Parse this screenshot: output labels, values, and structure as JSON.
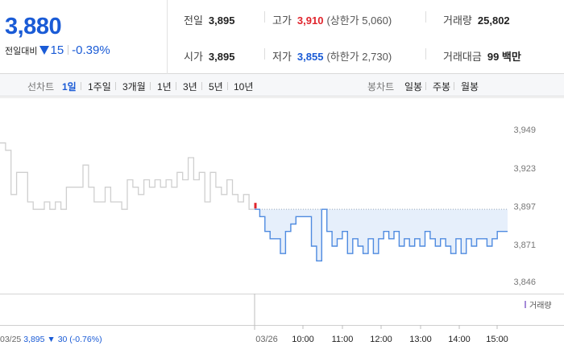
{
  "summary": {
    "price": "3,880",
    "change_label": "전일대비",
    "change_value": "15",
    "change_pct": "-0.39%",
    "prev_close_label": "전일",
    "prev_close": "3,895",
    "open_label": "시가",
    "open": "3,895",
    "high_label": "고가",
    "high": "3,910",
    "upper_limit": "(상한가 5,060)",
    "low_label": "저가",
    "low": "3,855",
    "lower_limit": "(하한가 2,730)",
    "volume_label": "거래량",
    "volume": "25,802",
    "value_label": "거래대금",
    "value": "99 백만"
  },
  "period_bar": {
    "line_label": "선차트",
    "line_options": [
      "1일",
      "1주일",
      "3개월",
      "1년",
      "3년",
      "5년",
      "10년"
    ],
    "line_selected": "1일",
    "candle_label": "봉차트",
    "candle_options": [
      "일봉",
      "주봉",
      "월봉"
    ]
  },
  "colors": {
    "down": "#1a5bd6",
    "up": "#e0242c",
    "prev_day_line": "#cfcfcf",
    "today_line": "#4f8be0",
    "fill": "#e6effb",
    "volume_legend": "#a48ad8"
  },
  "chart_data": {
    "type": "line",
    "y_ticks": [
      "3,949",
      "3,923",
      "3,897",
      "3,871",
      "3,846"
    ],
    "ylim": [
      3840,
      3960
    ],
    "reference_price": 3895,
    "x_ticks": [
      "03/26",
      "10:00",
      "11:00",
      "12:00",
      "13:00",
      "14:00",
      "15:00"
    ],
    "volume_legend": "거래량",
    "series": [
      {
        "name": "03/25",
        "values": [
          3940,
          3935,
          3905,
          3920,
          3920,
          3900,
          3895,
          3895,
          3900,
          3895,
          3900,
          3895,
          3910,
          3910,
          3910,
          3925,
          3910,
          3900,
          3900,
          3910,
          3900,
          3900,
          3895,
          3915,
          3910,
          3905,
          3915,
          3910,
          3915,
          3910,
          3915,
          3910,
          3920,
          3915,
          3930,
          3915,
          3920,
          3900,
          3920,
          3910,
          3905,
          3915,
          3905,
          3900,
          3905,
          3895
        ]
      },
      {
        "name": "03/26",
        "values": [
          3895,
          3890,
          3880,
          3875,
          3875,
          3865,
          3880,
          3885,
          3890,
          3890,
          3890,
          3870,
          3860,
          3895,
          3880,
          3870,
          3875,
          3880,
          3865,
          3875,
          3870,
          3865,
          3875,
          3865,
          3875,
          3880,
          3875,
          3880,
          3870,
          3875,
          3870,
          3875,
          3870,
          3880,
          3875,
          3870,
          3875,
          3870,
          3865,
          3875,
          3865,
          3875,
          3870,
          3875,
          3875,
          3870,
          3875,
          3880,
          3880
        ]
      }
    ],
    "prev_day_label": "03/25",
    "prev_day_close": "3,895",
    "prev_day_change": "30",
    "prev_day_change_pct": "(-0.76%)"
  }
}
